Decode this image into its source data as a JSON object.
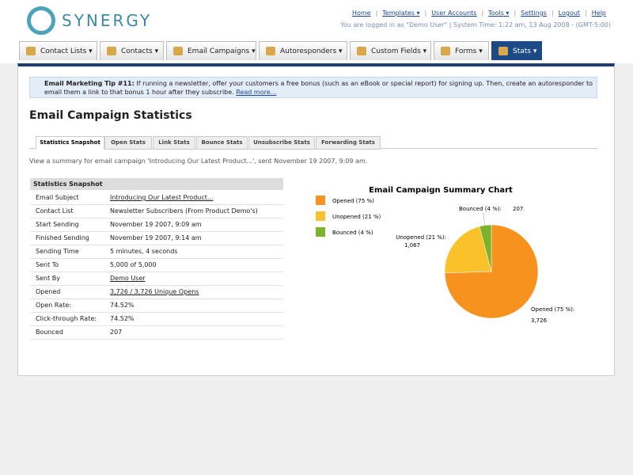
{
  "header": {
    "logo": "SYNERGY",
    "nav": [
      "Home",
      "Templates",
      "User Accounts",
      "Tools",
      "Settings",
      "Logout",
      "Help"
    ],
    "status": "You are logged in as \"Demo User\" | System Time: 1:22 am, 13 Aug 2008 - (GMT-5:00)"
  },
  "tabs": [
    "Contact Lists",
    "Contacts",
    "Email Campaigns",
    "Autoresponders",
    "Custom Fields",
    "Forms",
    "Stats"
  ],
  "tip": {
    "title": "Email Marketing Tip #11:",
    "text": "If running a newsletter, offer your customers a free bonus (such as an eBook or special report) for signing up. Then, create an autoresponder to email them a link to that bonus 1 hour after they subscribe.",
    "link": "Read more..."
  },
  "page_title": "Email Campaign Statistics",
  "subtabs": [
    "Statistics Snapshot",
    "Open Stats",
    "Link Stats",
    "Bounce Stats",
    "Unsubscribe Stats",
    "Forwarding Stats"
  ],
  "summary": "View a summary for email campaign 'Introducing Our Latest Product...', sent November 19 2007, 9:09 am.",
  "table": {
    "title": "Statistics Snapshot",
    "rows": [
      [
        "Email Subject",
        "Introducing Our Latest Product..."
      ],
      [
        "Contact List",
        "Newsletter Subscribers (From Product Demo's)"
      ],
      [
        "Start Sending",
        "November 19 2007, 9:09 am"
      ],
      [
        "Finished Sending",
        "November 19 2007, 9:14 am"
      ],
      [
        "Sending Time",
        "5 minutes, 4 seconds"
      ],
      [
        "Sent To",
        "5,000 of 5,000"
      ],
      [
        "Sent By",
        "Demo User"
      ],
      [
        "Opened",
        "3,726 / 3,726 Unique Opens"
      ],
      [
        "Open Rate:",
        "74.52%"
      ],
      [
        "Click-through Rate:",
        "74.52%"
      ],
      [
        "Bounced",
        "207"
      ]
    ]
  },
  "chart_data": {
    "type": "pie",
    "title": "Email Campaign Summary Chart",
    "series": [
      {
        "name": "Opened (75 %)",
        "color": "#f7921e"
      },
      {
        "name": "Unopened (21 %)",
        "color": "#f9c12a"
      },
      {
        "name": "Bounced (4 %)",
        "color": "#7cb32a"
      }
    ],
    "slice_labels": [
      "Opened (75 %):",
      "Unopened (21 %):",
      "Bounced (4 %):"
    ],
    "values": [
      3726,
      1067,
      207
    ],
    "value_labels": [
      "3,726",
      "1,067",
      "207"
    ]
  }
}
